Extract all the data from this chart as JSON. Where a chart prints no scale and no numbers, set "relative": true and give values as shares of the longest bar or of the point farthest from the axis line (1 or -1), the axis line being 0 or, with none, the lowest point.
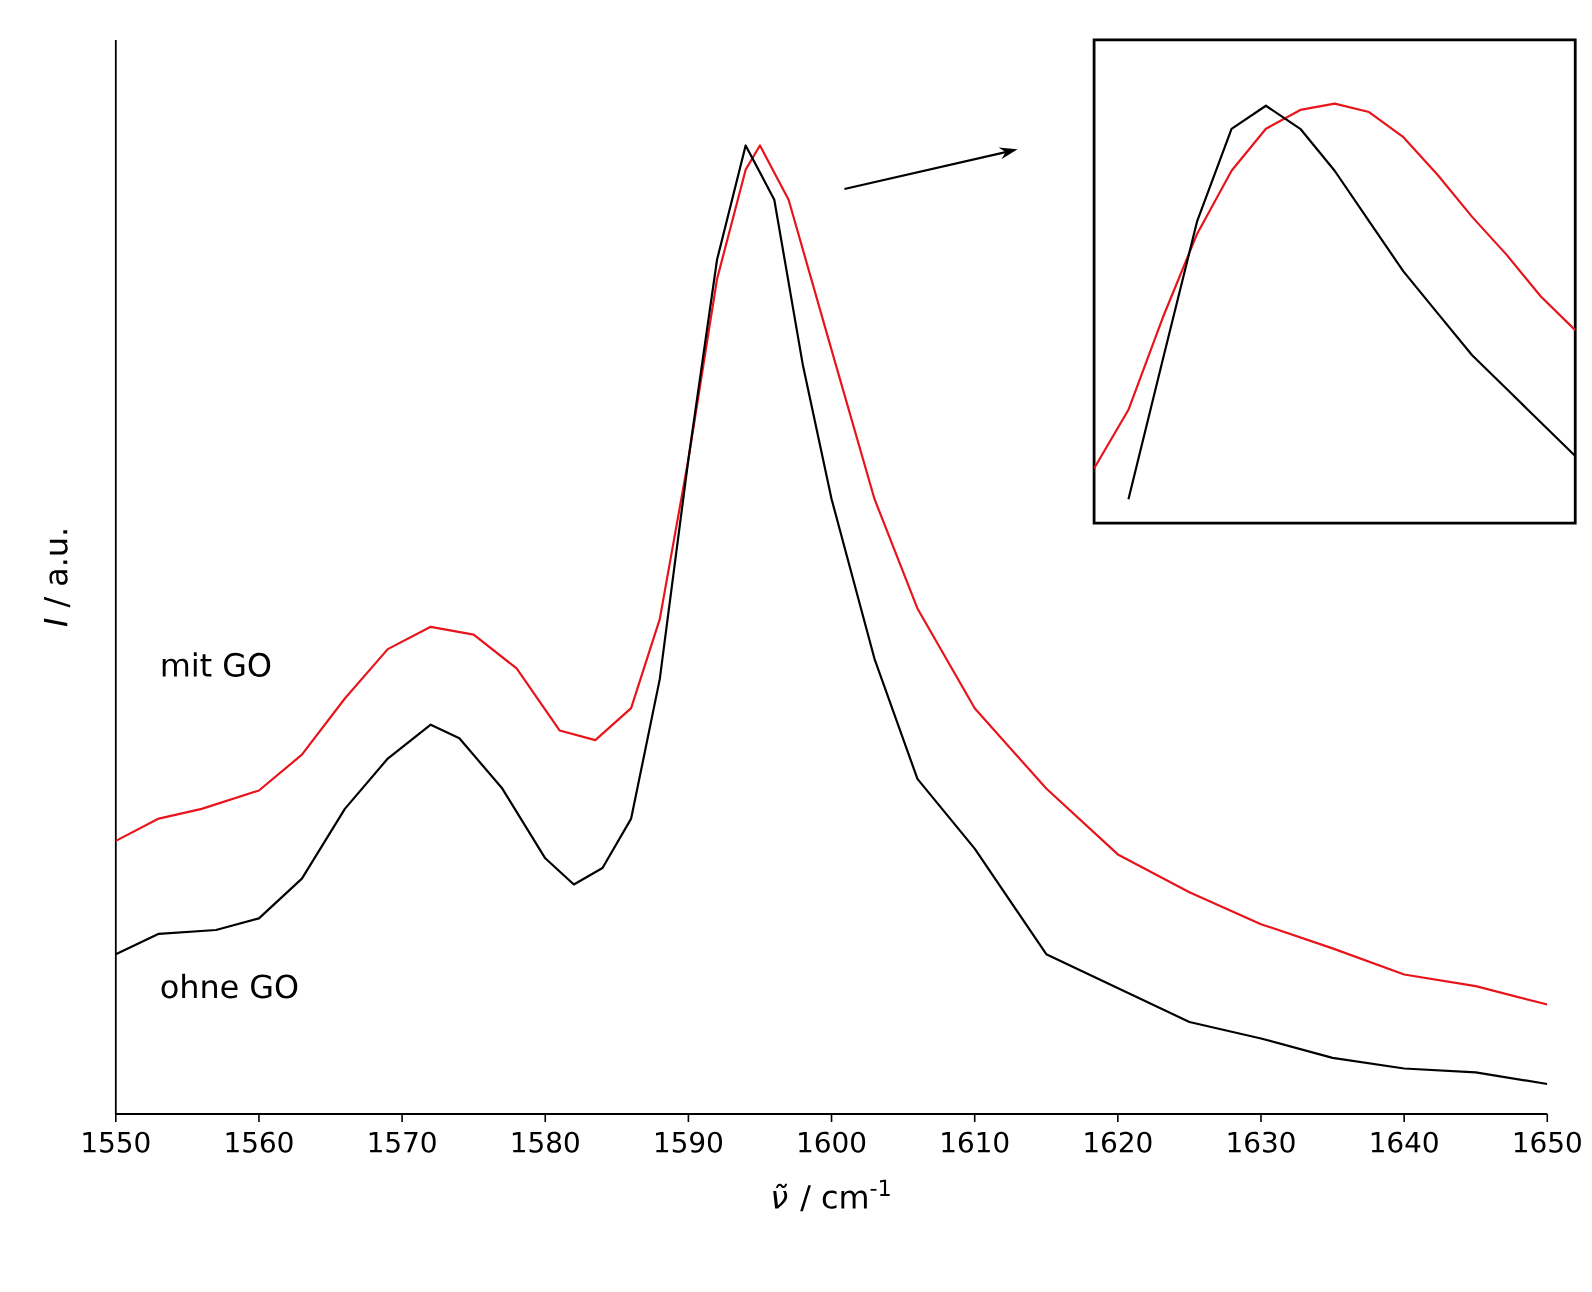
{
  "chart_data": [
    {
      "type": "line",
      "xlabel": "*ν̃* / cm$^{-1}$",
      "ylabel": "*I* / a.u.",
      "relative": true,
      "xlim": [
        1550,
        1650
      ],
      "xticks": [
        1550,
        1560,
        1570,
        1580,
        1590,
        1600,
        1610,
        1620,
        1630,
        1640,
        1650
      ],
      "series": [
        {
          "name": "mit GO",
          "color": "#e8141c",
          "x": [
            1550,
            1553,
            1556,
            1560,
            1563,
            1566,
            1569,
            1572,
            1575,
            1578,
            1581,
            1583.5,
            1586,
            1588,
            1590,
            1592,
            1594,
            1595,
            1597,
            1600,
            1603,
            1606,
            1610,
            1615,
            1620,
            1625,
            1630,
            1635,
            1640,
            1645,
            1650
          ],
          "values": [
            0.282,
            0.305,
            0.315,
            0.334,
            0.371,
            0.429,
            0.48,
            0.503,
            0.495,
            0.46,
            0.396,
            0.386,
            0.419,
            0.511,
            0.676,
            0.862,
            0.975,
            1.0,
            0.944,
            0.789,
            0.635,
            0.522,
            0.419,
            0.336,
            0.268,
            0.229,
            0.196,
            0.171,
            0.144,
            0.132,
            0.113
          ]
        },
        {
          "name": "ohne GO",
          "color": "#000000",
          "x": [
            1550,
            1553,
            1557,
            1560,
            1563,
            1566,
            1569,
            1572,
            1574,
            1577,
            1580,
            1582,
            1584,
            1586,
            1588,
            1590,
            1592,
            1594,
            1596,
            1598,
            1600,
            1603,
            1606,
            1610,
            1615,
            1620,
            1625,
            1630,
            1635,
            1640,
            1645,
            1650
          ],
          "values": [
            0.165,
            0.186,
            0.19,
            0.202,
            0.243,
            0.315,
            0.367,
            0.402,
            0.388,
            0.336,
            0.264,
            0.237,
            0.254,
            0.305,
            0.449,
            0.676,
            0.882,
            1.0,
            0.944,
            0.773,
            0.635,
            0.47,
            0.346,
            0.274,
            0.165,
            0.13,
            0.095,
            0.078,
            0.058,
            0.047,
            0.043,
            0.031
          ]
        }
      ]
    },
    {
      "type": "line",
      "relative": true,
      "categories": [
        null,
        null,
        null,
        null,
        null,
        null,
        null,
        null,
        null,
        null,
        null,
        null,
        null,
        null,
        null
      ],
      "series": [
        {
          "color": "#e8141c",
          "values": [
            0.13,
            0.27,
            0.49,
            0.69,
            0.84,
            0.94,
            0.985,
            1.0,
            0.98,
            0.92,
            0.83,
            0.73,
            0.64,
            0.54,
            0.46
          ]
        },
        {
          "color": "#000000",
          "values": [
            null,
            0.057,
            0.39,
            0.72,
            0.94,
            0.995,
            0.94,
            0.84,
            0.72,
            0.6,
            0.5,
            0.4,
            0.32,
            0.24,
            0.16
          ]
        }
      ]
    }
  ]
}
